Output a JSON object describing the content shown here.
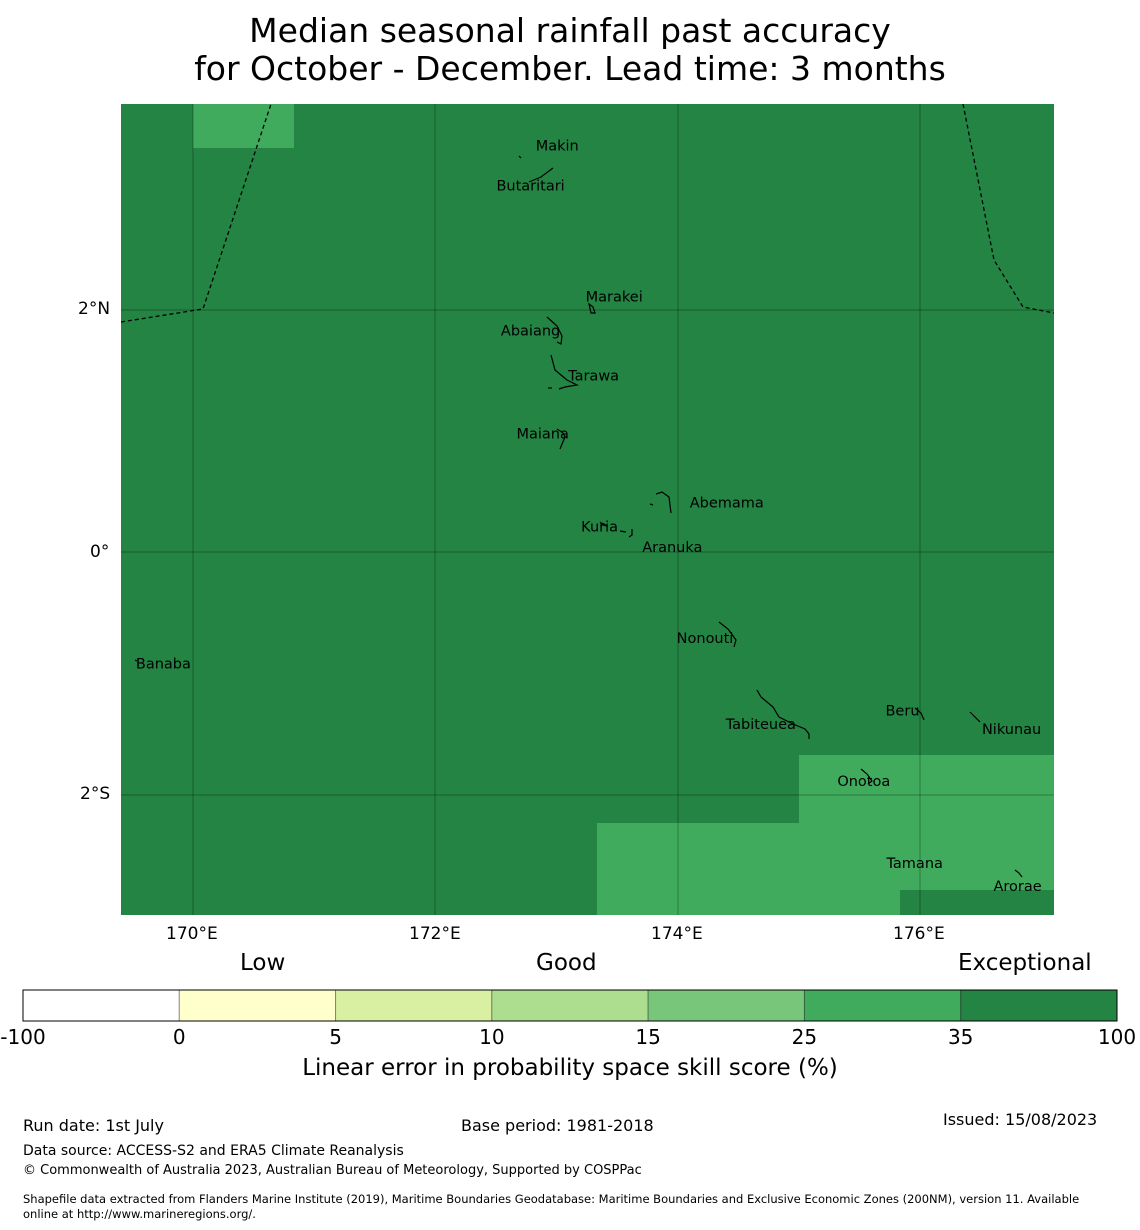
{
  "title": {
    "line1": "Median seasonal rainfall past accuracy",
    "line2": "for October - December. Lead time: 3 months"
  },
  "map": {
    "lat_range": [
      -3.0,
      3.7
    ],
    "lon_range": [
      169.4,
      177.1
    ],
    "lat_ticks": [
      {
        "value": 2,
        "label": "2°N"
      },
      {
        "value": 0,
        "label": "0°"
      },
      {
        "value": -2,
        "label": "2°S"
      }
    ],
    "lon_ticks": [
      {
        "value": 170,
        "label": "170°E"
      },
      {
        "value": 172,
        "label": "172°E"
      },
      {
        "value": 174,
        "label": "174°E"
      },
      {
        "value": 176,
        "label": "176°E"
      }
    ],
    "background_class": "35-100",
    "places": [
      {
        "name": "Makin",
        "lon": 173.0,
        "lat": 3.35
      },
      {
        "name": "Butaritari",
        "lon": 172.78,
        "lat": 3.02
      },
      {
        "name": "Marakei",
        "lon": 173.47,
        "lat": 2.1
      },
      {
        "name": "Abaiang",
        "lon": 172.78,
        "lat": 1.82
      },
      {
        "name": "Tarawa",
        "lon": 173.3,
        "lat": 1.45
      },
      {
        "name": "Maiana",
        "lon": 172.88,
        "lat": 0.97
      },
      {
        "name": "Abemama",
        "lon": 174.4,
        "lat": 0.4
      },
      {
        "name": "Kuria",
        "lon": 173.35,
        "lat": 0.2
      },
      {
        "name": "Aranuka",
        "lon": 173.95,
        "lat": 0.03
      },
      {
        "name": "Banaba",
        "lon": 169.75,
        "lat": -0.93
      },
      {
        "name": "Nonouti",
        "lon": 174.22,
        "lat": -0.72
      },
      {
        "name": "Beru",
        "lon": 175.85,
        "lat": -1.32
      },
      {
        "name": "Tabiteuea",
        "lon": 174.68,
        "lat": -1.43
      },
      {
        "name": "Nikunau",
        "lon": 176.75,
        "lat": -1.47
      },
      {
        "name": "Onotoa",
        "lon": 175.53,
        "lat": -1.9
      },
      {
        "name": "Tamana",
        "lon": 175.95,
        "lat": -2.58
      },
      {
        "name": "Arorae",
        "lon": 176.8,
        "lat": -2.77
      }
    ]
  },
  "colorbar": {
    "categories": [
      {
        "label": "Low"
      },
      {
        "label": "Good"
      },
      {
        "label": "Exceptional"
      }
    ],
    "classes": [
      {
        "from": "-100",
        "to": "0",
        "color": "#ffffff"
      },
      {
        "from": "0",
        "to": "5",
        "color": "#ffffcc"
      },
      {
        "from": "5",
        "to": "10",
        "color": "#d9f0a3"
      },
      {
        "from": "10",
        "to": "15",
        "color": "#addd8e"
      },
      {
        "from": "15",
        "to": "25",
        "color": "#78c679"
      },
      {
        "from": "25",
        "to": "35",
        "color": "#41ab5d"
      },
      {
        "from": "35",
        "to": "100",
        "color": "#238443"
      }
    ],
    "ticks": [
      "-100",
      "0",
      "5",
      "10",
      "15",
      "25",
      "35",
      "100"
    ],
    "label": "Linear error in probability space skill score (%)"
  },
  "footer": {
    "run_date": "Run date: 1st July",
    "base_period": "Base period: 1981-2018",
    "issued": "Issued: 15/08/2023",
    "data_source": "Data source: ACCESS-S2 and ERA5 Climate Reanalysis",
    "copyright": "© Commonwealth of Australia 2023, Australian Bureau of Meteorology, Supported by COSPPac",
    "shapefile_line1": "Shapefile data extracted from Flanders Marine Institute (2019), Maritime Boundaries Geodatabase: Maritime Boundaries and Exclusive Economic Zones (200NM), version 11. Available",
    "shapefile_line2": "online at http://www.marineregions.org/."
  }
}
